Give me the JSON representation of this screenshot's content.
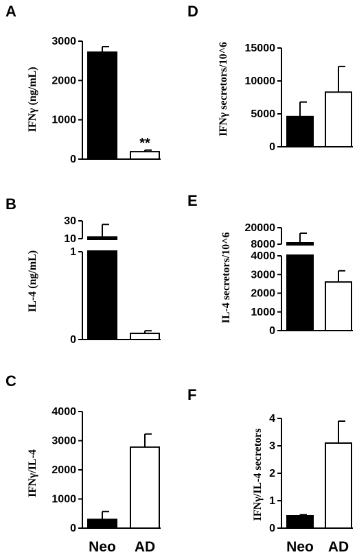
{
  "chart_data": [
    {
      "panel": "A",
      "type": "bar",
      "categories": [
        "Neo",
        "AD"
      ],
      "values": [
        2720,
        190
      ],
      "errors": [
        140,
        40
      ],
      "ylabel": "IFNγ (ng/mL)",
      "ylim": [
        0,
        3000
      ],
      "yticks": [
        "0",
        "1000",
        "2000",
        "3000"
      ],
      "annotations": [
        "",
        "**"
      ],
      "colors": [
        "#000000",
        "#ffffff"
      ],
      "show_categories": false
    },
    {
      "panel": "B",
      "type": "bar",
      "categories": [
        "Neo",
        "AD"
      ],
      "values": [
        12,
        0.07
      ],
      "errors": [
        14,
        0.03
      ],
      "ylabel": "IL-4 (ng/mL)",
      "broken_axis": true,
      "ylim_lower": [
        0,
        1
      ],
      "ylim_upper": [
        10,
        30
      ],
      "yticks": [
        "0",
        "1",
        "10",
        "30"
      ],
      "colors": [
        "#000000",
        "#ffffff"
      ],
      "show_categories": false
    },
    {
      "panel": "C",
      "type": "bar",
      "categories": [
        "Neo",
        "AD"
      ],
      "values": [
        300,
        2780
      ],
      "errors": [
        270,
        450
      ],
      "ylabel": "IFNγ/IL-4",
      "ylim": [
        0,
        4000
      ],
      "yticks": [
        "0",
        "1000",
        "2000",
        "3000",
        "4000"
      ],
      "colors": [
        "#000000",
        "#ffffff"
      ],
      "show_categories": true
    },
    {
      "panel": "D",
      "type": "bar",
      "categories": [
        "Neo",
        "AD"
      ],
      "values": [
        4600,
        8300
      ],
      "errors": [
        2200,
        3900
      ],
      "ylabel": "IFNγ secretors/10^6",
      "ylim": [
        0,
        15000
      ],
      "yticks": [
        "0",
        "5000",
        "10000",
        "15000"
      ],
      "colors": [
        "#000000",
        "#ffffff"
      ],
      "show_categories": false
    },
    {
      "panel": "E",
      "type": "bar",
      "categories": [
        "Neo",
        "AD"
      ],
      "values": [
        9000,
        2600
      ],
      "errors": [
        7000,
        600
      ],
      "ylabel": "IL-4 secretors/10^6",
      "broken_axis": true,
      "ylim_lower": [
        0,
        4000
      ],
      "ylim_upper": [
        8000,
        20000
      ],
      "yticks": [
        "0",
        "1000",
        "2000",
        "3000",
        "4000",
        "8000",
        "20000"
      ],
      "colors": [
        "#000000",
        "#ffffff"
      ],
      "show_categories": false
    },
    {
      "panel": "F",
      "type": "bar",
      "categories": [
        "Neo",
        "AD"
      ],
      "values": [
        0.45,
        3.1
      ],
      "errors": [
        0.04,
        0.8
      ],
      "ylabel": "IFNγ/IL-4 secretors",
      "ylim": [
        0,
        4
      ],
      "yticks": [
        "0",
        "1",
        "2",
        "3",
        "4"
      ],
      "colors": [
        "#000000",
        "#ffffff"
      ],
      "show_categories": true
    }
  ]
}
